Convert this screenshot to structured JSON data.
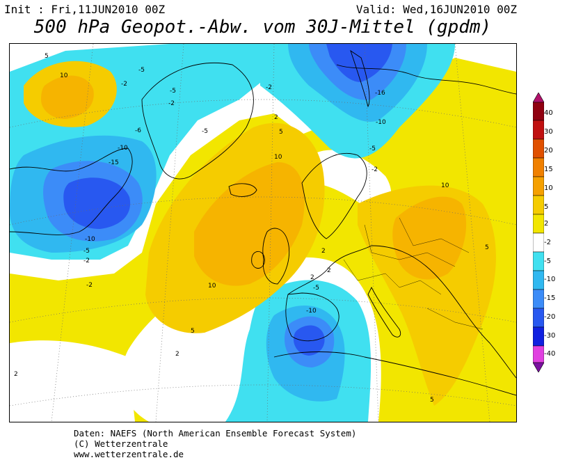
{
  "header": {
    "init": "Init : Fri,11JUN2010 00Z",
    "valid": "Valid: Wed,16JUN2010 00Z",
    "title": "500 hPa Geopot.-Abw. vom 30J-Mittel (gpdm)"
  },
  "colors": {
    "below_minus40": "#b000b0",
    "m40_m30": "#e040e0",
    "m30_m20": "#1020e0",
    "m20_m15": "#2858f0",
    "m15_m10": "#3c8cf8",
    "m10_m5": "#30b8f0",
    "m5_m2": "#40e0f0",
    "m2_p2": "#ffffff",
    "p2_p5": "#f2e600",
    "p5_p10": "#f5cc00",
    "p10_p15": "#f5a000",
    "p15_p20": "#f08000",
    "p20_p30": "#e05000",
    "p30_p40": "#c01010",
    "above_p40": "#900010"
  },
  "colorbar": {
    "labels": [
      "40",
      "30",
      "20",
      "15",
      "10",
      "5",
      "2",
      "-2",
      "-5",
      "-10",
      "-15",
      "-20",
      "-30",
      "-40"
    ]
  },
  "contour_labels": [
    {
      "text": "5"
    },
    {
      "text": "10"
    },
    {
      "text": "-5"
    },
    {
      "text": "-2"
    },
    {
      "text": "-5"
    },
    {
      "text": "-2"
    },
    {
      "text": "-6"
    },
    {
      "text": "-10"
    },
    {
      "text": "-15"
    },
    {
      "text": "-10"
    },
    {
      "text": "-5"
    },
    {
      "text": "-2"
    },
    {
      "text": "-2"
    },
    {
      "text": "-5"
    },
    {
      "text": "2"
    },
    {
      "text": "5"
    },
    {
      "text": "10"
    },
    {
      "text": "10"
    },
    {
      "text": "5"
    },
    {
      "text": "2"
    },
    {
      "text": "-16"
    },
    {
      "text": "-10"
    },
    {
      "text": "-5"
    },
    {
      "text": "-2"
    },
    {
      "text": "2"
    },
    {
      "text": "10"
    },
    {
      "text": "5"
    },
    {
      "text": "2"
    },
    {
      "text": "-5"
    },
    {
      "text": "-10"
    },
    {
      "text": "2"
    },
    {
      "text": "2"
    },
    {
      "text": "5"
    },
    {
      "text": "-2"
    }
  ],
  "footer": {
    "line1": "Daten: NAEFS (North American Ensemble Forecast System)",
    "line2": "(C) Wetterzentrale",
    "line3": "www.wetterzentrale.de"
  }
}
